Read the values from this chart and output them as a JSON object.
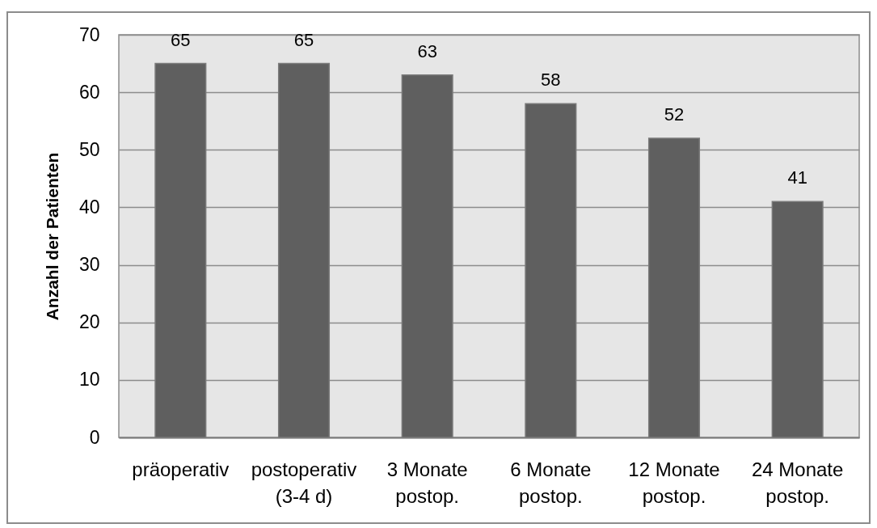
{
  "chart_data": {
    "type": "bar",
    "ylabel": "Anzahl der Patienten",
    "categories": [
      "präoperativ",
      "postoperativ (3-4 d)",
      "3 Monate postop.",
      "6 Monate postop.",
      "12 Monate postop.",
      "24 Monate postop."
    ],
    "values": [
      65,
      65,
      63,
      58,
      52,
      41
    ],
    "color": "#5f5f5f",
    "ylim": [
      0,
      70
    ],
    "yticks": [
      0,
      10,
      20,
      30,
      40,
      50,
      60,
      70
    ],
    "grid": "y",
    "data_labels": true
  }
}
